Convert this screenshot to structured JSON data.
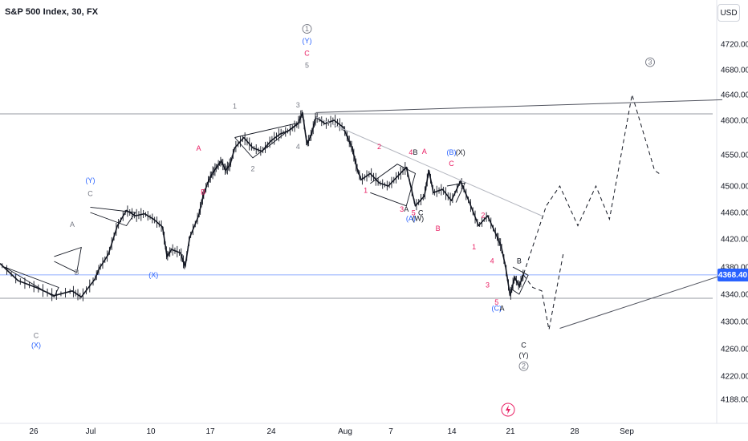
{
  "header": {
    "title": "S&P 500 Index, 30, FX",
    "currency": "USD",
    "last_price_label": "4368.40"
  },
  "colors": {
    "candle": "#131722",
    "wave_red": "#e91e63",
    "wave_blue": "#2962ff",
    "wave_black": "#131722",
    "wave_gray": "#787b86",
    "price_line": "#2962ff",
    "level_line": "#9598a1"
  },
  "events": {
    "icon": "economic-event-icon"
  },
  "chart_data": {
    "type": "line",
    "ylim": [
      4170,
      4760
    ],
    "y_ticks": [
      4720,
      4680,
      4640,
      4600,
      4550,
      4500,
      4460,
      4420,
      4380,
      4340,
      4300,
      4260,
      4220,
      4188
    ],
    "y_tick_labels": [
      "4720.00",
      "4680.00",
      "4640.00",
      "4600.00",
      "4550.00",
      "4500.00",
      "4460.00",
      "4420.00",
      "4380.00",
      "4340.00",
      "4300.00",
      "4260.00",
      "4220.00",
      "4188.00"
    ],
    "x_tick_labels": [
      "26",
      "Jul",
      "10",
      "17",
      "24",
      "Aug",
      "7",
      "14",
      "21",
      "28",
      "Sep"
    ],
    "last_price": 4368.4,
    "grid": false,
    "series": [
      {
        "style": "price",
        "values": [
          [
            0,
            4385
          ],
          [
            2,
            4360
          ],
          [
            4,
            4350
          ],
          [
            6,
            4338
          ],
          [
            8,
            4345
          ],
          [
            9,
            4336
          ],
          [
            10.5,
            4362
          ],
          [
            11,
            4378
          ],
          [
            12,
            4398
          ],
          [
            13,
            4440
          ],
          [
            14,
            4463
          ],
          [
            15,
            4455
          ],
          [
            16,
            4458
          ],
          [
            17,
            4450
          ],
          [
            18,
            4438
          ],
          [
            18.5,
            4395
          ],
          [
            19,
            4405
          ],
          [
            20,
            4400
          ],
          [
            20.5,
            4380
          ],
          [
            21,
            4422
          ],
          [
            22,
            4455
          ],
          [
            22.5,
            4485
          ],
          [
            23,
            4505
          ],
          [
            23.5,
            4520
          ],
          [
            24,
            4530
          ],
          [
            24.5,
            4540
          ],
          [
            25,
            4525
          ],
          [
            25.5,
            4535
          ],
          [
            26,
            4560
          ],
          [
            27,
            4575
          ],
          [
            28,
            4560
          ],
          [
            29,
            4555
          ],
          [
            30,
            4570
          ],
          [
            31,
            4580
          ],
          [
            32,
            4585
          ],
          [
            33,
            4595
          ],
          [
            33.5,
            4612
          ],
          [
            34,
            4565
          ],
          [
            34.5,
            4580
          ],
          [
            35,
            4605
          ],
          [
            36,
            4595
          ],
          [
            37,
            4600
          ],
          [
            38,
            4590
          ],
          [
            38.5,
            4575
          ],
          [
            39,
            4560
          ],
          [
            39.5,
            4530
          ],
          [
            40,
            4510
          ],
          [
            41,
            4520
          ],
          [
            42,
            4505
          ],
          [
            43,
            4500
          ],
          [
            44,
            4515
          ],
          [
            45,
            4530
          ],
          [
            46,
            4470
          ],
          [
            47,
            4485
          ],
          [
            47.5,
            4525
          ],
          [
            48,
            4490
          ],
          [
            49,
            4495
          ],
          [
            50,
            4478
          ],
          [
            51,
            4508
          ],
          [
            52,
            4475
          ],
          [
            53,
            4440
          ],
          [
            54,
            4455
          ],
          [
            55,
            4425
          ],
          [
            55.5,
            4410
          ],
          [
            56,
            4380
          ],
          [
            56.5,
            4338
          ],
          [
            57,
            4365
          ],
          [
            57.5,
            4352
          ],
          [
            58,
            4370
          ]
        ]
      },
      {
        "style": "projection",
        "values": [
          [
            58,
            4370
          ],
          [
            60.5,
            4470
          ],
          [
            62,
            4500
          ],
          [
            64,
            4440
          ],
          [
            66,
            4500
          ],
          [
            67.5,
            4450
          ],
          [
            70,
            4640
          ],
          [
            72.5,
            4525
          ],
          [
            73,
            4520
          ]
        ]
      },
      {
        "style": "projection",
        "values": [
          [
            58,
            4368
          ],
          [
            59,
            4350
          ],
          [
            60,
            4345
          ],
          [
            60.8,
            4288
          ],
          [
            62.4,
            4400
          ]
        ]
      },
      {
        "style": "trendline",
        "values": [
          [
            35,
            4612
          ],
          [
            80,
            4632
          ]
        ]
      },
      {
        "style": "trendline",
        "values": [
          [
            62,
            4290
          ],
          [
            80,
            4368
          ]
        ]
      }
    ],
    "annotations": [
      {
        "text": "1",
        "x": 34,
        "y": 4740,
        "circled": true,
        "color": "wave_gray"
      },
      {
        "text": "(Y)",
        "x": 34,
        "y": 4721,
        "color": "wave_blue"
      },
      {
        "text": "C",
        "x": 34,
        "y": 4702,
        "color": "wave_red"
      },
      {
        "text": "5",
        "x": 34,
        "y": 4683,
        "color": "wave_gray"
      },
      {
        "text": "3",
        "x": 72,
        "y": 4688,
        "circled": true,
        "color": "wave_gray"
      },
      {
        "text": "2",
        "x": 58,
        "y": 4231,
        "circled": true,
        "color": "wave_gray"
      },
      {
        "text": "(Y)",
        "x": 58,
        "y": 4247,
        "color": "wave_black"
      },
      {
        "text": "C",
        "x": 58,
        "y": 4262,
        "color": "wave_black"
      },
      {
        "text": "(Y)",
        "x": 10,
        "y": 4505,
        "color": "wave_blue"
      },
      {
        "text": "C",
        "x": 10,
        "y": 4485,
        "color": "wave_gray"
      },
      {
        "text": "(X)",
        "x": 4,
        "y": 4262,
        "color": "wave_blue"
      },
      {
        "text": "C",
        "x": 4,
        "y": 4276,
        "color": "wave_gray"
      },
      {
        "text": "(X)",
        "x": 17,
        "y": 4365,
        "color": "wave_blue"
      },
      {
        "text": "A",
        "x": 8,
        "y": 4438,
        "color": "wave_gray"
      },
      {
        "text": "B",
        "x": 8.5,
        "y": 4369,
        "color": "wave_gray"
      },
      {
        "text": "A",
        "x": 22,
        "y": 4556,
        "color": "wave_red"
      },
      {
        "text": "B",
        "x": 22.5,
        "y": 4487,
        "color": "wave_red"
      },
      {
        "text": "1",
        "x": 26,
        "y": 4618,
        "color": "wave_gray"
      },
      {
        "text": "2",
        "x": 28,
        "y": 4524,
        "color": "wave_gray"
      },
      {
        "text": "3",
        "x": 33,
        "y": 4620,
        "color": "wave_gray"
      },
      {
        "text": "4",
        "x": 33,
        "y": 4558,
        "color": "wave_gray"
      },
      {
        "text": "1",
        "x": 40.5,
        "y": 4490,
        "color": "wave_red"
      },
      {
        "text": "2",
        "x": 42,
        "y": 4558,
        "color": "wave_red"
      },
      {
        "text": "3",
        "x": 44.5,
        "y": 4461,
        "color": "wave_red"
      },
      {
        "text": "A",
        "x": 45,
        "y": 4461,
        "color": "wave_black"
      },
      {
        "text": "4",
        "x": 45.5,
        "y": 4550,
        "color": "wave_red"
      },
      {
        "text": "B",
        "x": 46,
        "y": 4550,
        "color": "wave_black"
      },
      {
        "text": "A",
        "x": 47,
        "y": 4551,
        "color": "wave_red"
      },
      {
        "text": "5",
        "x": 45.8,
        "y": 4456,
        "color": "wave_red"
      },
      {
        "text": "C",
        "x": 46.6,
        "y": 4456,
        "color": "wave_black"
      },
      {
        "text": "(A)",
        "x": 45.5,
        "y": 4447,
        "color": "wave_blue"
      },
      {
        "text": "(W)",
        "x": 46.3,
        "y": 4447,
        "color": "wave_black"
      },
      {
        "text": "B",
        "x": 48.5,
        "y": 4432,
        "color": "wave_red"
      },
      {
        "text": "(B)",
        "x": 50,
        "y": 4550,
        "color": "wave_blue"
      },
      {
        "text": "(X)",
        "x": 51,
        "y": 4550,
        "color": "wave_black"
      },
      {
        "text": "C",
        "x": 50,
        "y": 4532,
        "color": "wave_red"
      },
      {
        "text": "2",
        "x": 53.5,
        "y": 4452,
        "color": "wave_red"
      },
      {
        "text": "1",
        "x": 52.5,
        "y": 4405,
        "color": "wave_red"
      },
      {
        "text": "4",
        "x": 54.5,
        "y": 4385,
        "color": "wave_red"
      },
      {
        "text": "3",
        "x": 54,
        "y": 4350,
        "color": "wave_red"
      },
      {
        "text": "5",
        "x": 55,
        "y": 4325,
        "color": "wave_red"
      },
      {
        "text": "(C)",
        "x": 55,
        "y": 4316,
        "color": "wave_blue"
      },
      {
        "text": "A",
        "x": 55.6,
        "y": 4316,
        "color": "wave_black"
      },
      {
        "text": "B",
        "x": 57.5,
        "y": 4385,
        "color": "wave_black"
      }
    ]
  }
}
